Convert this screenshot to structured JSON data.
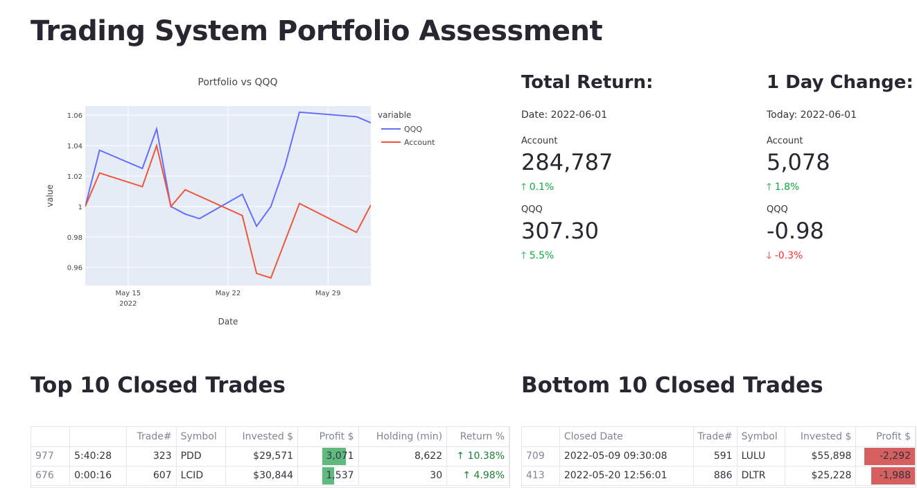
{
  "page": {
    "title": "Trading System Portfolio Assessment"
  },
  "chart_data": {
    "type": "line",
    "title": "Portfolio vs QQQ",
    "xlabel": "Date",
    "ylabel": "value",
    "legend_title": "variable",
    "legend_position": "top-right",
    "grid": true,
    "x_start": "2022-05-12",
    "x_end": "2022-06-01",
    "ylim": [
      0.948,
      1.066
    ],
    "y_ticks": [
      0.96,
      0.98,
      1,
      1.02,
      1.04,
      1.06
    ],
    "y_tick_labels": [
      "0.96",
      "0.98",
      "1",
      "1.02",
      "1.04",
      "1.06"
    ],
    "x_ticks": [
      "2022-05-15",
      "2022-05-22",
      "2022-05-29"
    ],
    "x_tick_labels": [
      "May 15",
      "May 22",
      "May 29"
    ],
    "x_tick_sublabel": "2022",
    "series": [
      {
        "name": "QQQ",
        "color": "#636efa",
        "x": [
          "2022-05-12",
          "2022-05-13",
          "2022-05-16",
          "2022-05-17",
          "2022-05-18",
          "2022-05-19",
          "2022-05-20",
          "2022-05-23",
          "2022-05-24",
          "2022-05-25",
          "2022-05-26",
          "2022-05-27",
          "2022-05-31",
          "2022-06-01"
        ],
        "y": [
          1.0,
          1.037,
          1.025,
          1.051,
          1.0,
          0.995,
          0.992,
          1.008,
          0.987,
          1.0,
          1.027,
          1.062,
          1.059,
          1.055
        ]
      },
      {
        "name": "Account",
        "color": "#ef553b",
        "x": [
          "2022-05-12",
          "2022-05-13",
          "2022-05-16",
          "2022-05-17",
          "2022-05-18",
          "2022-05-19",
          "2022-05-23",
          "2022-05-24",
          "2022-05-25",
          "2022-05-27",
          "2022-05-31",
          "2022-06-01"
        ],
        "y": [
          1.0,
          1.022,
          1.013,
          1.04,
          1.0,
          1.011,
          0.994,
          0.956,
          0.953,
          1.002,
          0.983,
          1.001
        ]
      }
    ]
  },
  "metrics": {
    "total": {
      "heading": "Total Return:",
      "date_text": "Date: 2022-06-01",
      "account": {
        "label": "Account",
        "value": "284,787",
        "delta": "0.1%",
        "direction": "up"
      },
      "qqq": {
        "label": "QQQ",
        "value": "307.30",
        "delta": "5.5%",
        "direction": "up"
      }
    },
    "day": {
      "heading": "1 Day Change:",
      "date_text": "Today: 2022-06-01",
      "account": {
        "label": "Account",
        "value": "5,078",
        "delta": "1.8%",
        "direction": "up"
      },
      "qqq": {
        "label": "QQQ",
        "value": "-0.98",
        "delta": "-0.3%",
        "direction": "down"
      }
    }
  },
  "top_trades": {
    "heading": "Top 10 Closed Trades",
    "columns": [
      "",
      "",
      "Trade#",
      "Symbol",
      "Invested $",
      "Profit $",
      "Holding (min)",
      "Return %"
    ],
    "rows": [
      {
        "index": "977",
        "closed": "5:40:28",
        "trade": "323",
        "symbol": "PDD",
        "invested": "$29,571",
        "profit": "3,071",
        "profit_bar": 1.0,
        "holding": "8,622",
        "ret": "10.38%"
      },
      {
        "index": "676",
        "closed": "0:00:16",
        "trade": "607",
        "symbol": "LCID",
        "invested": "$30,844",
        "profit": "1,537",
        "profit_bar": 0.5,
        "holding": "30",
        "ret": "4.98%"
      }
    ]
  },
  "bottom_trades": {
    "heading": "Bottom 10 Closed Trades",
    "columns": [
      "",
      "Closed Date",
      "Trade#",
      "Symbol",
      "Invested $",
      "Profit $"
    ],
    "rows": [
      {
        "index": "709",
        "closed": "2022-05-09 09:30:08",
        "trade": "591",
        "symbol": "LULU",
        "invested": "$55,898",
        "profit": "-2,292",
        "profit_bar": 1.0
      },
      {
        "index": "413",
        "closed": "2022-05-20 12:56:01",
        "trade": "886",
        "symbol": "DLTR",
        "invested": "$25,228",
        "profit": "-1,988",
        "profit_bar": 0.87
      }
    ]
  }
}
